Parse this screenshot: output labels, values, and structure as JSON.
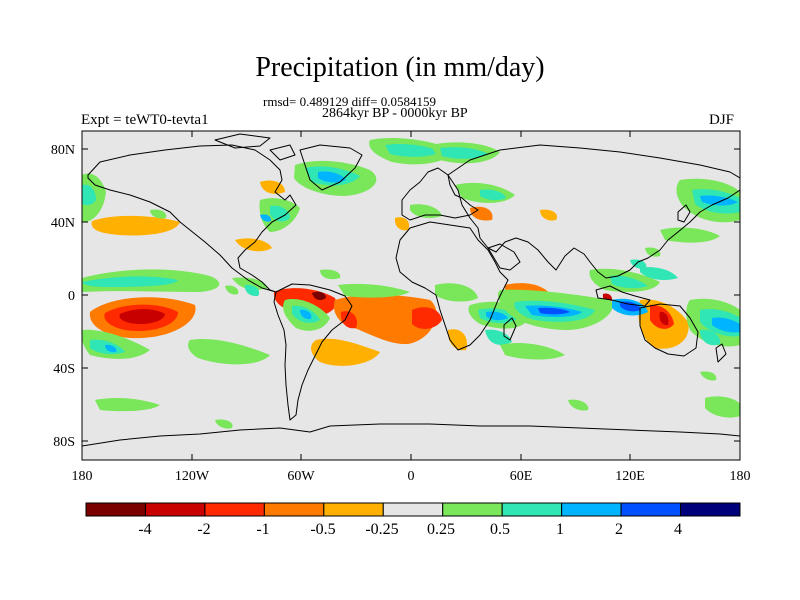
{
  "title": "Precipitation (in mm/day)",
  "stats": "rmsd= 0.489129 diff= 0.0584159",
  "period": "2864kyr BP - 0000kyr BP",
  "experiment": "Expt = teWT0-tevta1",
  "season": "DJF",
  "lat_labels": [
    "80N",
    "40N",
    "0",
    "40S",
    "80S"
  ],
  "lon_labels": [
    "180",
    "120W",
    "60W",
    "0",
    "60E",
    "120E",
    "180"
  ],
  "colorbar": {
    "colors": [
      "#7a0000",
      "#c80000",
      "#ff2a00",
      "#ff7a00",
      "#ffb000",
      "#e6e6e6",
      "#7ae65a",
      "#2fe6b4",
      "#00b4ff",
      "#0050ff",
      "#00007a"
    ],
    "labels": [
      "-4",
      "-2",
      "-1",
      "-0.5",
      "-0.25",
      "0.25",
      "0.5",
      "1",
      "2",
      "4"
    ]
  },
  "map_colors": {
    "background": "#e6e6e6",
    "coast": "#000000"
  }
}
